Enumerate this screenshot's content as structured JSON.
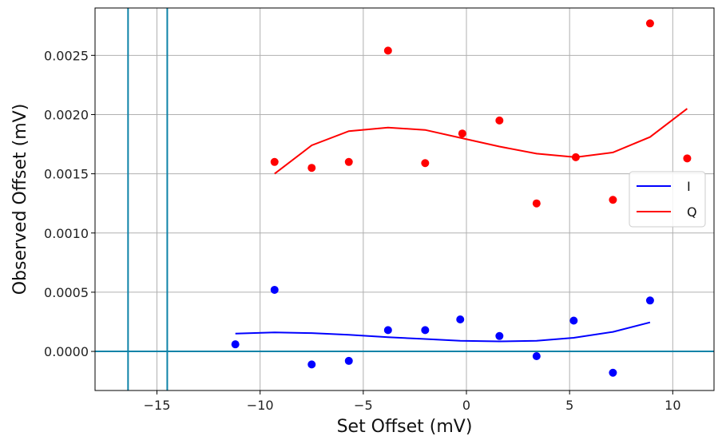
{
  "chart_data": {
    "type": "scatter",
    "title": "",
    "xlabel": "Set Offset (mV)",
    "ylabel": "Observed Offset (mV)",
    "xlim": [
      -18,
      12
    ],
    "ylim": [
      -0.00033,
      0.0029
    ],
    "xticks": [
      -15,
      -10,
      -5,
      0,
      5,
      10
    ],
    "xtick_labels": [
      "−15",
      "−10",
      "−5",
      "0",
      "5",
      "10"
    ],
    "yticks": [
      0.0,
      0.0005,
      0.001,
      0.0015,
      0.002,
      0.0025
    ],
    "ytick_labels": [
      "0.0000",
      "0.0005",
      "0.0010",
      "0.0015",
      "0.0020",
      "0.0025"
    ],
    "grid": true,
    "legend_position": "center-right",
    "series": [
      {
        "name": "I",
        "color": "#0000ff",
        "points_x": [
          -11.2,
          -9.3,
          -7.5,
          -5.7,
          -3.8,
          -2.0,
          -0.3,
          1.6,
          3.4,
          5.2,
          7.1,
          8.9
        ],
        "points_y": [
          6e-05,
          0.00052,
          -0.00011,
          -8e-05,
          0.00018,
          0.00018,
          0.00027,
          0.00013,
          -4e-05,
          0.00026,
          -0.00018,
          0.00043
        ],
        "fit_x": [
          -11.2,
          -9.3,
          -7.5,
          -5.7,
          -3.8,
          -2.0,
          -0.3,
          1.6,
          3.4,
          5.2,
          7.1,
          8.9
        ],
        "fit_y": [
          0.00015,
          0.00016,
          0.000155,
          0.00014,
          0.00012,
          0.000105,
          9e-05,
          8.5e-05,
          9e-05,
          0.000115,
          0.000165,
          0.000245
        ]
      },
      {
        "name": "Q",
        "color": "#ff0000",
        "points_x": [
          -9.3,
          -7.5,
          -5.7,
          -3.8,
          -2.0,
          -0.2,
          1.6,
          3.4,
          5.3,
          7.1,
          8.9,
          10.7
        ],
        "points_y": [
          0.0016,
          0.00155,
          0.0016,
          0.00254,
          0.00159,
          0.00184,
          0.00195,
          0.00125,
          0.00164,
          0.00128,
          0.00277,
          0.00163
        ],
        "fit_x": [
          -9.3,
          -7.5,
          -5.7,
          -3.8,
          -2.0,
          -0.2,
          1.6,
          3.4,
          5.3,
          7.1,
          8.9,
          10.7
        ],
        "fit_y": [
          0.0015,
          0.00174,
          0.00186,
          0.00189,
          0.00187,
          0.0018,
          0.00173,
          0.00167,
          0.00164,
          0.00168,
          0.00181,
          0.00205
        ]
      }
    ],
    "reference_lines": {
      "color": "#0e83a8",
      "vertical_x": [
        -16.4,
        -14.5
      ],
      "horizontal_y": [
        0.0
      ]
    }
  }
}
